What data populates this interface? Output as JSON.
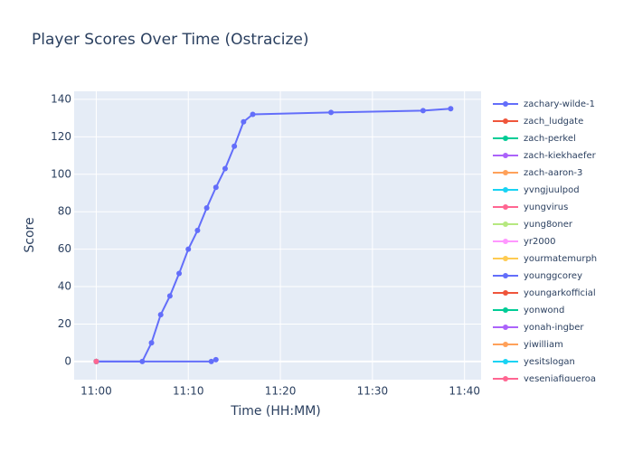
{
  "chart_data": {
    "type": "line",
    "title": "Player Scores Over Time (Ostracize)",
    "x_label": "Time (HH:MM)",
    "y_label": "Score",
    "xlim": [
      "10:57.6",
      "11:41.8"
    ],
    "ylim": [
      -9.7,
      144.3
    ],
    "xticks": [
      "11:00",
      "11:10",
      "11:20",
      "11:30",
      "11:40"
    ],
    "yticks": [
      0,
      20,
      40,
      60,
      80,
      100,
      120,
      140
    ],
    "grid": true,
    "legend": "right",
    "series": [
      {
        "name": "zachary-wilde-1",
        "color": "#636efa",
        "x": [
          "11:00",
          "11:05",
          "11:06",
          "11:07",
          "11:08",
          "11:09",
          "11:10",
          "11:11",
          "11:12",
          "11:13",
          "11:14",
          "11:15",
          "11:16",
          "11:17",
          "11:25.5",
          "11:35.5",
          "11:38.5"
        ],
        "values": [
          0,
          0,
          10,
          25,
          35,
          47,
          60,
          70,
          82,
          93,
          103,
          115,
          128,
          132,
          133,
          134,
          135
        ]
      },
      {
        "name": "zach_ludgate",
        "color": "#EF553B",
        "x": [
          "11:00"
        ],
        "values": [
          0
        ]
      },
      {
        "name": "zach-perkel",
        "color": "#00cc96",
        "x": [
          "11:00"
        ],
        "values": [
          0
        ]
      },
      {
        "name": "zach-kiekhaefer",
        "color": "#ab63fa",
        "x": [
          "11:00"
        ],
        "values": [
          0
        ]
      },
      {
        "name": "zach-aaron-3",
        "color": "#FFA15A",
        "x": [
          "11:00"
        ],
        "values": [
          0
        ]
      },
      {
        "name": "yvngjuulpod",
        "color": "#19d3f3",
        "x": [
          "11:00"
        ],
        "values": [
          0
        ]
      },
      {
        "name": "yungvirus",
        "color": "#FF6692",
        "x": [
          "11:00"
        ],
        "values": [
          0
        ]
      },
      {
        "name": "yung8oner",
        "color": "#B6E880",
        "x": [
          "11:00"
        ],
        "values": [
          0
        ]
      },
      {
        "name": "yr2000",
        "color": "#FF97FF",
        "x": [
          "11:00"
        ],
        "values": [
          0
        ]
      },
      {
        "name": "yourmatemurph",
        "color": "#FECB52",
        "x": [
          "11:00"
        ],
        "values": [
          0
        ]
      },
      {
        "name": "younggcorey",
        "color": "#636efa",
        "x": [
          "11:00",
          "11:12.5",
          "11:13"
        ],
        "values": [
          0,
          0,
          1
        ]
      },
      {
        "name": "youngarkofficial",
        "color": "#EF553B",
        "x": [
          "11:00"
        ],
        "values": [
          0
        ]
      },
      {
        "name": "yonwond",
        "color": "#00cc96",
        "x": [
          "11:00"
        ],
        "values": [
          0
        ]
      },
      {
        "name": "yonah-ingber",
        "color": "#ab63fa",
        "x": [
          "11:00"
        ],
        "values": [
          0
        ]
      },
      {
        "name": "yiwilliam",
        "color": "#FFA15A",
        "x": [
          "11:00"
        ],
        "values": [
          0
        ]
      },
      {
        "name": "yesitslogan",
        "color": "#19d3f3",
        "x": [
          "11:00"
        ],
        "values": [
          0
        ]
      },
      {
        "name": "yesenjafigueroa",
        "color": "#FF6692",
        "x": [
          "11:00"
        ],
        "values": [
          0
        ]
      }
    ]
  }
}
